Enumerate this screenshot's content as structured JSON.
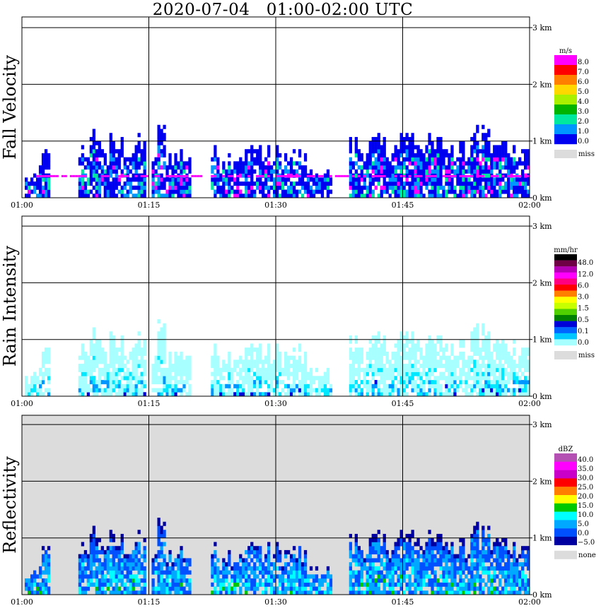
{
  "title": "2020-07-04   01:00-02:00 UTC",
  "time_ticks": [
    "01:00",
    "01:15",
    "01:30",
    "01:45",
    "02:00"
  ],
  "height_ticks": [
    "0 km",
    "1 km",
    "2 km",
    "3 km"
  ],
  "chart_data": [
    {
      "type": "heatmap",
      "id": "fall-velocity",
      "ylabel": "Fall Velocity",
      "xlabel": "",
      "x_range": [
        "01:00",
        "02:00"
      ],
      "ylim_km": [
        0,
        3
      ],
      "grid": true,
      "legend_placement": "right",
      "background": "#ffffff",
      "legend": {
        "unit": "m/s",
        "labels": [
          "8.0",
          "7.0",
          "6.0",
          "5.0",
          "4.0",
          "3.0",
          "2.0",
          "1.0",
          "0.0"
        ],
        "colors": [
          "#ff00ff",
          "#ff0000",
          "#ff7f00",
          "#ffd800",
          "#a8f000",
          "#00b400",
          "#00e8a0",
          "#0096ff",
          "#0000f0"
        ],
        "miss_label": "miss",
        "miss_color": "#dcdcdc"
      },
      "cells": [
        [
          0,
          0
        ],
        [
          0,
          1
        ],
        [
          1,
          1
        ]
      ],
      "mode": "velocity"
    },
    {
      "type": "heatmap",
      "id": "rain-intensity",
      "ylabel": "Rain Intensity",
      "xlabel": "",
      "x_range": [
        "01:00",
        "02:00"
      ],
      "ylim_km": [
        0,
        3
      ],
      "grid": true,
      "legend_placement": "right",
      "background": "#ffffff",
      "legend": {
        "unit": "mm/hr",
        "labels": [
          "48.0",
          "12.0",
          "6.0",
          "3.0",
          "1.5",
          "0.5",
          "0.1",
          "0.0"
        ],
        "colors": [
          "#000000",
          "#6e0046",
          "#b400b4",
          "#ff00ff",
          "#ff0080",
          "#ff0000",
          "#ff8000",
          "#ffff00",
          "#c8ff00",
          "#50d000",
          "#008000",
          "#0000d8",
          "#0064ff",
          "#00c8ff",
          "#a8ffff"
        ],
        "miss_label": "miss",
        "miss_color": "#dcdcdc"
      },
      "mode": "rain"
    },
    {
      "type": "heatmap",
      "id": "reflectivity",
      "ylabel": "Reflectivity",
      "xlabel": "",
      "x_range": [
        "01:00",
        "02:00"
      ],
      "ylim_km": [
        0,
        3
      ],
      "grid": true,
      "legend_placement": "right",
      "background": "#dcdcdc",
      "legend": {
        "unit": "dBZ",
        "labels": [
          "40.0",
          "35.0",
          "30.0",
          "25.0",
          "20.0",
          "15.0",
          "10.0",
          "5.0",
          "0.0",
          "−5.0"
        ],
        "colors": [
          "#b450b4",
          "#ff00ff",
          "#c800c8",
          "#ff0000",
          "#ff8000",
          "#ffff00",
          "#00c800",
          "#00ffff",
          "#00a8ff",
          "#0050ff",
          "#0000a0"
        ],
        "miss_label": "none",
        "miss_color": "#dcdcdc"
      },
      "mode": "dbz"
    }
  ]
}
